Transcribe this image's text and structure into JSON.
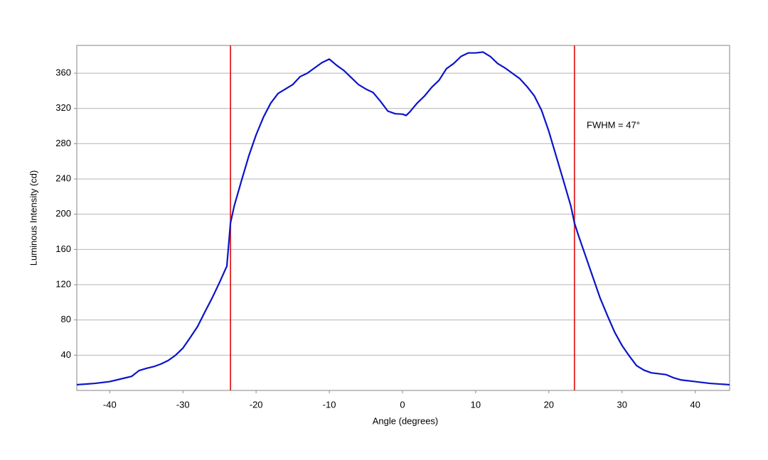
{
  "chart_data": {
    "type": "line",
    "x_label": "Angle (degrees)",
    "y_label": "Luminous Intensity (cd)",
    "annotation": "FWHM = 47°",
    "xlim": [
      -44.5,
      44.7
    ],
    "ylim": [
      0,
      391.5
    ],
    "xticks": [
      -40,
      -30,
      -20,
      -10,
      0,
      10,
      20,
      30,
      40
    ],
    "yticks": [
      40,
      80,
      120,
      160,
      200,
      240,
      280,
      320,
      360
    ],
    "grid": true,
    "vlines": [
      -23.5,
      23.5
    ],
    "vline_color": "#e02020",
    "series": [
      {
        "color": "#0a14c8",
        "x": [
          -44.5,
          -42,
          -40,
          -38,
          -37,
          -36,
          -35,
          -34,
          -33,
          -32,
          -31,
          -30,
          -29,
          -28,
          -27,
          -26,
          -25,
          -24,
          -23.5,
          -23,
          -22,
          -21,
          -20,
          -19,
          -18,
          -17,
          -16,
          -15,
          -14,
          -13,
          -12,
          -11,
          -10,
          -9,
          -8,
          -7,
          -6,
          -5,
          -4,
          -3,
          -2,
          -1,
          0,
          0.5,
          1,
          2,
          3,
          4,
          5,
          6,
          7,
          8,
          9,
          10,
          11,
          12,
          13,
          14,
          15,
          16,
          17,
          18,
          19,
          20,
          21,
          22,
          23,
          23.5,
          24,
          25,
          26,
          27,
          28,
          29,
          30,
          31,
          32,
          33,
          34,
          35,
          36,
          37,
          38,
          40,
          42,
          44.7
        ],
        "values": [
          6.5,
          8,
          10,
          14,
          16,
          22.5,
          25,
          27,
          30,
          34,
          40,
          48,
          60,
          72.5,
          89,
          105,
          122.5,
          141,
          190,
          209,
          238,
          266,
          290,
          310,
          326,
          337,
          342,
          347,
          356,
          360,
          366,
          372,
          376,
          369,
          363,
          355,
          347,
          342,
          338,
          328,
          317,
          314,
          313.5,
          312,
          316,
          326,
          334,
          344,
          352,
          365,
          371,
          379,
          383,
          383,
          384,
          379,
          371,
          366,
          360,
          354,
          345,
          334.5,
          318,
          294,
          266,
          238,
          209.5,
          190,
          177,
          153,
          129,
          105,
          85,
          66,
          51,
          39,
          28,
          23,
          20,
          19,
          18,
          14.5,
          12,
          10,
          8,
          6.5
        ]
      }
    ]
  }
}
